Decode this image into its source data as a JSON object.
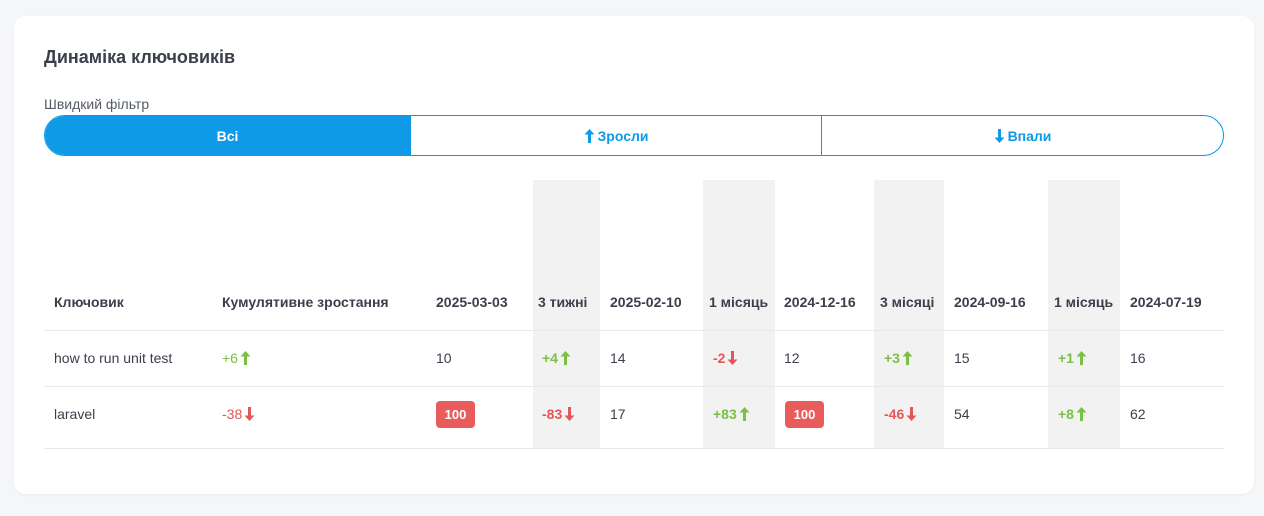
{
  "widget": {
    "title": "Динаміка ключовиків",
    "quick_filter_label": "Швидкий фільтр",
    "filters": [
      {
        "label": "Всі",
        "active": true
      },
      {
        "label": "Зросли",
        "icon": "arrow-up-icon",
        "active": false
      },
      {
        "label": "Впали",
        "icon": "arrow-down-icon",
        "active": false
      }
    ]
  },
  "colors": {
    "accent": "#0e9ae6",
    "positive": "#7bc043",
    "negative": "#e65656",
    "badge": "#e85c5c",
    "shaded_column": "#f2f2f2"
  },
  "table": {
    "headers": {
      "keyword": "Ключовик",
      "cumulative": "Кумулятивне зростання",
      "c1": "2025-03-03",
      "d1": "3 тижні",
      "c2": "2025-02-10",
      "d2": "1 місяць",
      "c3": "2024-12-16",
      "d3": "3 місяці",
      "c4": "2024-09-16",
      "d4": "1 місяць",
      "c5": "2024-07-19"
    },
    "rows": [
      {
        "keyword": "how to run unit test",
        "cumulative": "+6",
        "c1": "10",
        "d1": "+4",
        "c2": "14",
        "d2": "-2",
        "c3": "12",
        "d3": "+3",
        "c4": "15",
        "d4": "+1",
        "c5": "16"
      },
      {
        "keyword": "laravel",
        "cumulative": "-38",
        "c1": "100",
        "d1": "-83",
        "c2": "17",
        "d2": "+83",
        "c3": "100",
        "d3": "-46",
        "c4": "54",
        "d4": "+8",
        "c5": "62"
      }
    ]
  }
}
